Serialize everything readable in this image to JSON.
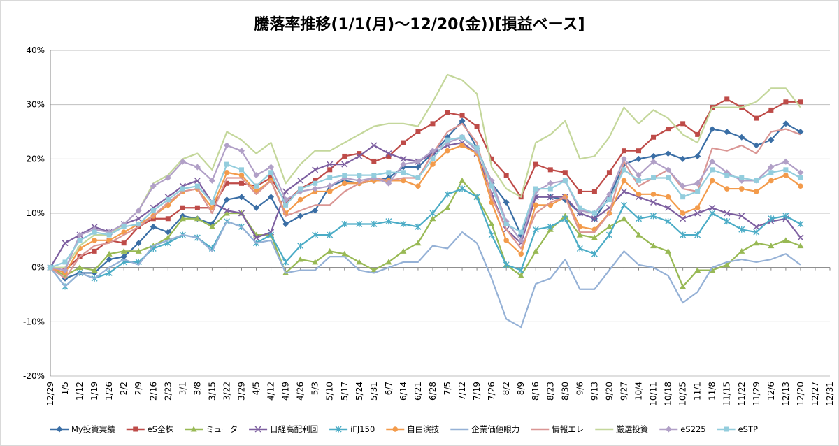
{
  "chart_data": {
    "type": "line",
    "title": "騰落率推移(1/1(月)～12/20(金))[損益ベース]",
    "xlabel": "",
    "ylabel": "",
    "ylim": [
      -0.2,
      0.4
    ],
    "yticks": [
      -0.2,
      -0.1,
      0,
      0.1,
      0.2,
      0.3,
      0.4
    ],
    "ytick_labels": [
      "-20%",
      "-10%",
      "0%",
      "10%",
      "20%",
      "30%",
      "40%"
    ],
    "grid": true,
    "legend_position": "bottom",
    "x_tick_labels": [
      "12/29",
      "1/5",
      "1/12",
      "1/19",
      "1/26",
      "2/2",
      "2/9",
      "2/16",
      "2/23",
      "3/1",
      "3/8",
      "3/15",
      "3/22",
      "3/29",
      "4/5",
      "4/12",
      "4/19",
      "4/26",
      "5/3",
      "5/10",
      "5/17",
      "5/24",
      "5/31",
      "6/7",
      "6/14",
      "6/21",
      "6/28",
      "7/5",
      "7/12",
      "7/19",
      "7/26",
      "8/2",
      "8/9",
      "8/16",
      "8/23",
      "8/30",
      "9/6",
      "9/13",
      "9/20",
      "9/27",
      "10/4",
      "10/11",
      "10/18",
      "10/25",
      "11/1",
      "11/8",
      "11/15",
      "11/22",
      "11/29",
      "12/6",
      "12/13",
      "12/20",
      "12/27",
      "12/31"
    ],
    "series": [
      {
        "name": "My投資実績",
        "color": "#3a6ea5",
        "marker": "diamond",
        "values": [
          0,
          -0.02,
          -0.01,
          -0.01,
          0.015,
          0.02,
          0.045,
          0.075,
          0.065,
          0.095,
          0.09,
          0.08,
          0.125,
          0.13,
          0.11,
          0.13,
          0.08,
          0.095,
          0.105,
          0.15,
          0.16,
          0.155,
          0.16,
          0.165,
          0.185,
          0.185,
          0.21,
          0.24,
          0.27,
          0.22,
          0.155,
          0.12,
          0.06,
          0.13,
          0.13,
          0.125,
          0.1,
          0.09,
          0.13,
          0.19,
          0.2,
          0.205,
          0.21,
          0.2,
          0.205,
          0.255,
          0.25,
          0.24,
          0.225,
          0.235,
          0.265,
          0.25
        ]
      },
      {
        "name": "eS全株",
        "color": "#be4b48",
        "marker": "square",
        "values": [
          0,
          -0.005,
          0.02,
          0.03,
          0.05,
          0.045,
          0.075,
          0.09,
          0.09,
          0.11,
          0.11,
          0.11,
          0.155,
          0.155,
          0.15,
          0.165,
          0.12,
          0.145,
          0.16,
          0.18,
          0.205,
          0.21,
          0.195,
          0.205,
          0.23,
          0.25,
          0.265,
          0.285,
          0.28,
          0.26,
          0.2,
          0.17,
          0.13,
          0.19,
          0.18,
          0.175,
          0.14,
          0.14,
          0.175,
          0.215,
          0.215,
          0.24,
          0.255,
          0.265,
          0.245,
          0.295,
          0.31,
          0.295,
          0.275,
          0.29,
          0.305,
          0.305
        ]
      },
      {
        "name": "ミュータ",
        "color": "#98b954",
        "marker": "triangle",
        "values": [
          0,
          -0.015,
          0.0,
          -0.005,
          0.025,
          0.03,
          0.03,
          0.04,
          0.055,
          0.09,
          0.09,
          0.075,
          0.1,
          0.1,
          0.06,
          0.06,
          -0.01,
          0.015,
          0.01,
          0.03,
          0.025,
          0.01,
          -0.005,
          0.01,
          0.03,
          0.045,
          0.09,
          0.11,
          0.16,
          0.13,
          0.08,
          0.005,
          -0.015,
          0.03,
          0.07,
          0.095,
          0.06,
          0.055,
          0.075,
          0.09,
          0.06,
          0.04,
          0.03,
          -0.035,
          -0.005,
          -0.005,
          0.005,
          0.03,
          0.045,
          0.04,
          0.05,
          0.04
        ]
      },
      {
        "name": "日経高配利回",
        "color": "#7d5fa0",
        "marker": "x",
        "values": [
          0,
          0.045,
          0.06,
          0.075,
          0.065,
          0.08,
          0.09,
          0.11,
          0.13,
          0.15,
          0.16,
          0.12,
          0.105,
          0.1,
          0.055,
          0.065,
          0.14,
          0.16,
          0.18,
          0.19,
          0.19,
          0.205,
          0.225,
          0.21,
          0.2,
          0.195,
          0.21,
          0.225,
          0.23,
          0.21,
          0.135,
          0.07,
          0.045,
          0.13,
          0.13,
          0.13,
          0.1,
          0.09,
          0.11,
          0.14,
          0.13,
          0.12,
          0.11,
          0.09,
          0.1,
          0.11,
          0.1,
          0.095,
          0.075,
          0.085,
          0.09,
          0.055
        ]
      },
      {
        "name": "iFJ150",
        "color": "#4bacc6",
        "marker": "star",
        "values": [
          0,
          -0.035,
          -0.01,
          -0.02,
          -0.01,
          0.01,
          0.01,
          0.035,
          0.045,
          0.06,
          0.055,
          0.035,
          0.085,
          0.075,
          0.045,
          0.06,
          0.01,
          0.04,
          0.06,
          0.06,
          0.08,
          0.08,
          0.08,
          0.085,
          0.08,
          0.075,
          0.1,
          0.135,
          0.145,
          0.13,
          0.06,
          0.005,
          -0.005,
          0.07,
          0.075,
          0.09,
          0.035,
          0.025,
          0.06,
          0.115,
          0.09,
          0.095,
          0.085,
          0.06,
          0.06,
          0.1,
          0.085,
          0.07,
          0.065,
          0.09,
          0.095,
          0.08
        ]
      },
      {
        "name": "自由演技",
        "color": "#f39b4b",
        "marker": "circle",
        "values": [
          0,
          -0.01,
          0.035,
          0.05,
          0.05,
          0.065,
          0.08,
          0.095,
          0.115,
          0.14,
          0.145,
          0.11,
          0.175,
          0.17,
          0.14,
          0.16,
          0.1,
          0.125,
          0.14,
          0.14,
          0.155,
          0.155,
          0.16,
          0.16,
          0.16,
          0.15,
          0.19,
          0.215,
          0.225,
          0.21,
          0.12,
          0.05,
          0.025,
          0.115,
          0.115,
          0.13,
          0.075,
          0.07,
          0.1,
          0.16,
          0.135,
          0.135,
          0.13,
          0.1,
          0.11,
          0.16,
          0.145,
          0.145,
          0.14,
          0.16,
          0.17,
          0.15
        ]
      },
      {
        "name": "企業価値眼力",
        "color": "#95b1d6",
        "marker": "none",
        "values": [
          0,
          -0.035,
          -0.01,
          -0.02,
          0.0,
          0.015,
          0.005,
          0.04,
          0.05,
          0.06,
          0.055,
          0.03,
          0.085,
          0.075,
          0.045,
          0.05,
          -0.01,
          -0.005,
          -0.005,
          0.02,
          0.02,
          -0.005,
          -0.01,
          0.0,
          0.01,
          0.01,
          0.04,
          0.035,
          0.065,
          0.045,
          -0.02,
          -0.095,
          -0.11,
          -0.03,
          -0.02,
          0.015,
          -0.04,
          -0.04,
          -0.005,
          0.03,
          0.005,
          0.0,
          -0.015,
          -0.065,
          -0.045,
          0.0,
          0.01,
          0.015,
          0.01,
          0.015,
          0.025,
          0.005
        ]
      },
      {
        "name": "情報エレ",
        "color": "#da9694",
        "marker": "none",
        "values": [
          0,
          -0.02,
          0.02,
          0.04,
          0.045,
          0.06,
          0.075,
          0.095,
          0.12,
          0.14,
          0.145,
          0.1,
          0.165,
          0.165,
          0.135,
          0.16,
          0.095,
          0.105,
          0.115,
          0.115,
          0.14,
          0.155,
          0.165,
          0.16,
          0.165,
          0.165,
          0.21,
          0.25,
          0.265,
          0.23,
          0.13,
          0.07,
          0.035,
          0.1,
          0.12,
          0.13,
          0.065,
          0.065,
          0.1,
          0.195,
          0.15,
          0.165,
          0.18,
          0.145,
          0.14,
          0.22,
          0.215,
          0.225,
          0.21,
          0.25,
          0.255,
          0.245
        ]
      },
      {
        "name": "厳選投資",
        "color": "#c4d79b",
        "marker": "none",
        "values": [
          0,
          0.0,
          0.04,
          0.06,
          0.06,
          0.08,
          0.105,
          0.155,
          0.17,
          0.2,
          0.21,
          0.18,
          0.25,
          0.235,
          0.21,
          0.23,
          0.155,
          0.19,
          0.215,
          0.215,
          0.23,
          0.245,
          0.26,
          0.265,
          0.265,
          0.26,
          0.305,
          0.355,
          0.345,
          0.32,
          0.185,
          0.145,
          0.13,
          0.23,
          0.245,
          0.27,
          0.2,
          0.205,
          0.24,
          0.295,
          0.265,
          0.29,
          0.275,
          0.245,
          0.23,
          0.295,
          0.295,
          0.295,
          0.305,
          0.33,
          0.33,
          0.295
        ]
      },
      {
        "name": "eS225",
        "color": "#b1a0c7",
        "marker": "diamond",
        "values": [
          0,
          -0.005,
          0.06,
          0.07,
          0.065,
          0.08,
          0.105,
          0.15,
          0.165,
          0.195,
          0.185,
          0.16,
          0.225,
          0.215,
          0.17,
          0.185,
          0.125,
          0.14,
          0.145,
          0.15,
          0.165,
          0.16,
          0.165,
          0.155,
          0.19,
          0.195,
          0.215,
          0.23,
          0.24,
          0.215,
          0.16,
          0.085,
          0.05,
          0.14,
          0.155,
          0.16,
          0.105,
          0.1,
          0.135,
          0.2,
          0.17,
          0.195,
          0.18,
          0.15,
          0.155,
          0.195,
          0.175,
          0.16,
          0.16,
          0.185,
          0.195,
          0.175
        ]
      },
      {
        "name": "eSTP",
        "color": "#93cddd",
        "marker": "square",
        "values": [
          0,
          0.01,
          0.05,
          0.065,
          0.06,
          0.075,
          0.08,
          0.105,
          0.125,
          0.145,
          0.15,
          0.12,
          0.19,
          0.18,
          0.15,
          0.175,
          0.115,
          0.145,
          0.155,
          0.165,
          0.17,
          0.17,
          0.17,
          0.175,
          0.175,
          0.165,
          0.2,
          0.235,
          0.24,
          0.22,
          0.15,
          0.08,
          0.065,
          0.145,
          0.145,
          0.16,
          0.11,
          0.1,
          0.125,
          0.18,
          0.16,
          0.165,
          0.165,
          0.13,
          0.14,
          0.18,
          0.17,
          0.165,
          0.16,
          0.175,
          0.18,
          0.165
        ]
      }
    ]
  }
}
